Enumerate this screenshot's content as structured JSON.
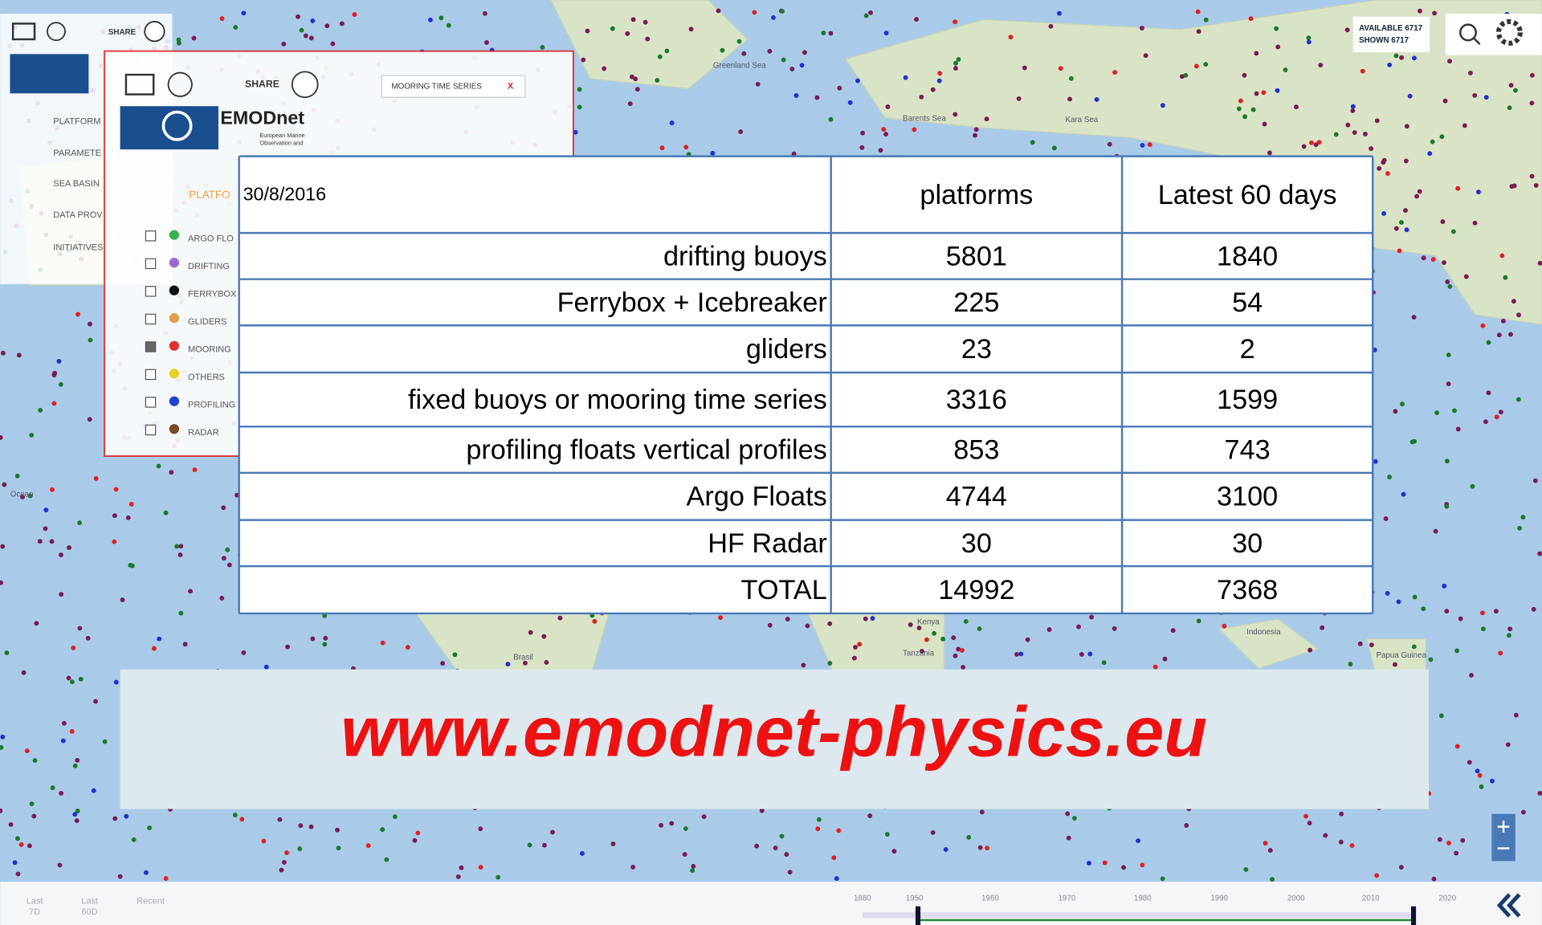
{
  "toolbar": {
    "share": "SHARE",
    "available": "AVAILABLE 6717",
    "shown": "SHOWN 6717"
  },
  "sidebar_menu": [
    "PLATFORM",
    "PARAMETE",
    "SEA BASIN",
    "DATA PROV",
    "INITIATIVES"
  ],
  "panel": {
    "share": "SHARE",
    "logo": "EMODnet",
    "logo_sub": "European Marine",
    "logo_sub2": "Observation and",
    "tag": "MOORING TIME SERIES",
    "close": "X",
    "section": "PLATFO",
    "platforms": [
      "ARGO FLO",
      "DRIFTING",
      "FERRYBOX",
      "GLIDERS",
      "MOORING",
      "OTHERS",
      "PROFILING",
      "RADAR"
    ]
  },
  "map_labels": [
    "Greenland Sea",
    "Barents Sea",
    "Kara Sea",
    "Kenya",
    "Tanzania",
    "Brasil",
    "Indonesia",
    "Papua Guinea",
    "Ocean"
  ],
  "table": {
    "date": "30/8/2016",
    "columns": [
      "platforms",
      "Latest 60 days"
    ],
    "rows": [
      [
        "drifting buoys",
        5801,
        1840
      ],
      [
        "Ferrybox + Icebreaker",
        225,
        54
      ],
      [
        "gliders",
        23,
        2
      ],
      [
        "fixed buoys or mooring time series",
        3316,
        1599
      ],
      [
        "profiling floats vertical profiles",
        853,
        743
      ],
      [
        "Argo Floats",
        4744,
        3100
      ],
      [
        "HF Radar",
        30,
        30
      ],
      [
        "TOTAL",
        14992,
        7368
      ]
    ]
  },
  "banner": "www.emodnet-physics.eu",
  "timeline": {
    "buttons": [
      [
        "Last",
        "7D"
      ],
      [
        "Last",
        "60D"
      ],
      [
        "Recent"
      ]
    ],
    "years": [
      1880,
      1950,
      1960,
      1970,
      1980,
      1990,
      2000,
      2010,
      2020
    ]
  }
}
